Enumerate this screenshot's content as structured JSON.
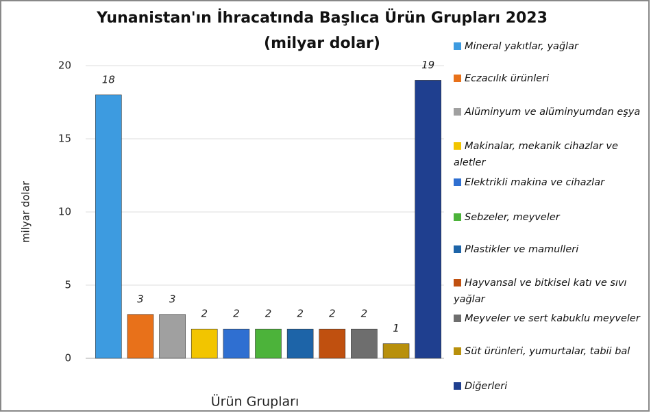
{
  "chart_data": {
    "type": "bar",
    "title": "Yunanistan'ın İhracatında Başlıca Ürün Grupları 2023 (milyar dolar)",
    "ylabel": "milyar dolar",
    "xlabel": "Ürün Grupları",
    "categories": [
      "Mineral yakıtlar, yağlar",
      "Eczacılık ürünleri",
      "Alüminyum ve alüminyumdan eşya",
      "Makinalar, mekanik cihazlar ve aletler",
      "Elektrikli makina ve cihazlar",
      "Sebzeler, meyveler",
      "Plastikler ve mamulleri",
      "Hayvansal ve bitkisel katı ve sıvı yağlar",
      "Meyveler ve sert kabuklu meyveler",
      "Süt ürünleri, yumurtalar, tabii bal",
      "Diğerleri"
    ],
    "values": [
      18,
      3,
      3,
      2,
      2,
      2,
      2,
      2,
      2,
      1,
      19
    ],
    "colors": [
      "#3d9be0",
      "#e8711a",
      "#a0a0a0",
      "#f2c500",
      "#2f6fd1",
      "#4cb33a",
      "#1d64a8",
      "#c0500f",
      "#6e6e6e",
      "#b8900c",
      "#1f3f8f"
    ],
    "ylim": [
      0,
      20
    ],
    "yticks": [
      0,
      5,
      10,
      15,
      20
    ],
    "grid": true,
    "legend": "right"
  }
}
